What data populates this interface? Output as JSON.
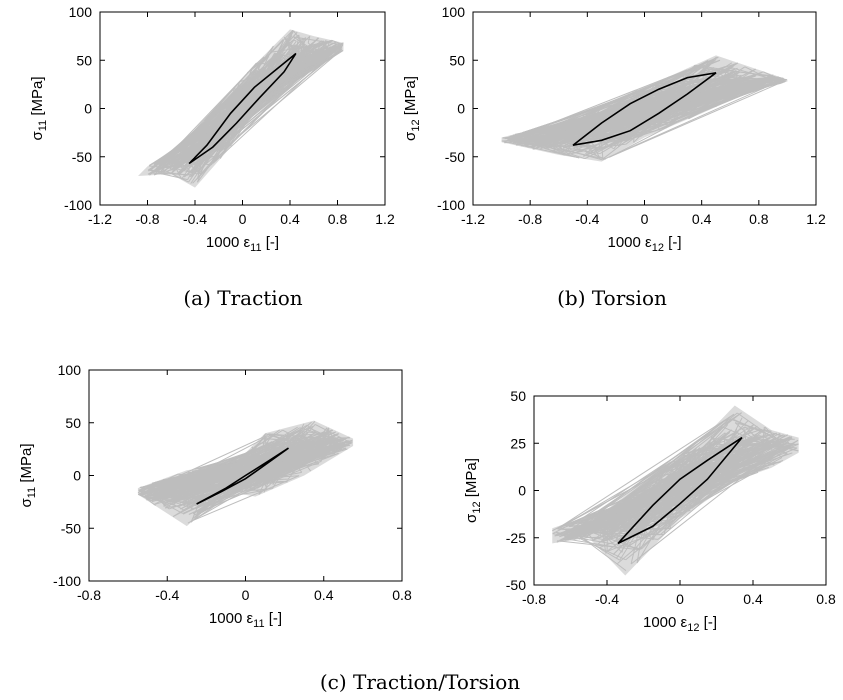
{
  "captions": {
    "a": "(a)  Traction",
    "b": "(b)  Torsion",
    "c": "(c)  Traction/Torsion"
  },
  "colors": {
    "cloud": "#bdbdbd",
    "loop": "#000000",
    "frame": "#000000"
  },
  "chart_data": [
    {
      "id": "a",
      "type": "line",
      "title": "",
      "xlabel": {
        "base": "1000 ε",
        "sub": "11",
        "suffix": " [-]"
      },
      "ylabel": {
        "base": "σ",
        "sub": "11",
        "suffix": " [MPa]"
      },
      "xlim": [
        -1.2,
        1.2
      ],
      "ylim": [
        -100,
        100
      ],
      "xticks": [
        -1.2,
        -0.8,
        -0.4,
        0,
        0.4,
        0.8,
        1.2
      ],
      "yticks": [
        -100,
        -50,
        0,
        50,
        100
      ],
      "xtick_labels": [
        "-1.2",
        "-0.8",
        "-0.4",
        "0",
        "0.4",
        "0.8",
        "1.2"
      ],
      "ytick_labels": [
        "-100",
        "-50",
        "0",
        "50",
        "100"
      ],
      "grid": false,
      "scatter_band": {
        "upper": [
          [
            -0.8,
            -60
          ],
          [
            -0.5,
            -35
          ],
          [
            -0.2,
            5
          ],
          [
            0.1,
            45
          ],
          [
            0.4,
            82
          ],
          [
            0.6,
            75
          ],
          [
            0.85,
            68
          ]
        ],
        "lower": [
          [
            -0.88,
            -70
          ],
          [
            -0.6,
            -68
          ],
          [
            -0.4,
            -82
          ],
          [
            -0.1,
            -40
          ],
          [
            0.2,
            15
          ],
          [
            0.5,
            40
          ],
          [
            0.85,
            60
          ]
        ]
      },
      "loop": {
        "upper": [
          [
            -0.45,
            -57
          ],
          [
            -0.3,
            -38
          ],
          [
            -0.1,
            -5
          ],
          [
            0.1,
            22
          ],
          [
            0.3,
            42
          ],
          [
            0.45,
            57
          ]
        ],
        "lower": [
          [
            -0.45,
            -57
          ],
          [
            -0.25,
            -40
          ],
          [
            -0.05,
            -15
          ],
          [
            0.15,
            12
          ],
          [
            0.35,
            38
          ],
          [
            0.45,
            57
          ]
        ]
      }
    },
    {
      "id": "b",
      "type": "line",
      "title": "",
      "xlabel": {
        "base": "1000 ε",
        "sub": "12",
        "suffix": " [-]"
      },
      "ylabel": {
        "base": "σ",
        "sub": "12",
        "suffix": " [MPa]"
      },
      "xlim": [
        -1.2,
        1.2
      ],
      "ylim": [
        -100,
        100
      ],
      "xticks": [
        -1.2,
        -0.8,
        -0.4,
        0,
        0.4,
        0.8,
        1.2
      ],
      "yticks": [
        -100,
        -50,
        0,
        50,
        100
      ],
      "xtick_labels": [
        "-1.2",
        "-0.8",
        "-0.4",
        "0",
        "0.4",
        "0.8",
        "1.2"
      ],
      "ytick_labels": [
        "-100",
        "-50",
        "0",
        "50",
        "100"
      ],
      "grid": false,
      "scatter_band": {
        "upper": [
          [
            -1.0,
            -30
          ],
          [
            -0.6,
            -15
          ],
          [
            -0.2,
            10
          ],
          [
            0.2,
            35
          ],
          [
            0.5,
            55
          ],
          [
            0.8,
            40
          ],
          [
            1.0,
            30
          ]
        ],
        "lower": [
          [
            -1.0,
            -35
          ],
          [
            -0.6,
            -48
          ],
          [
            -0.3,
            -55
          ],
          [
            0.0,
            -30
          ],
          [
            0.4,
            -5
          ],
          [
            0.7,
            15
          ],
          [
            1.0,
            28
          ]
        ]
      },
      "loop": {
        "upper": [
          [
            -0.5,
            -38
          ],
          [
            -0.3,
            -15
          ],
          [
            -0.1,
            5
          ],
          [
            0.1,
            20
          ],
          [
            0.3,
            32
          ],
          [
            0.5,
            37
          ]
        ],
        "lower": [
          [
            -0.5,
            -38
          ],
          [
            -0.3,
            -33
          ],
          [
            -0.1,
            -23
          ],
          [
            0.1,
            -5
          ],
          [
            0.3,
            15
          ],
          [
            0.5,
            37
          ]
        ]
      }
    },
    {
      "id": "c1",
      "type": "line",
      "title": "",
      "xlabel": {
        "base": "1000 ε",
        "sub": "11",
        "suffix": " [-]"
      },
      "ylabel": {
        "base": "σ",
        "sub": "11",
        "suffix": " [MPa]"
      },
      "xlim": [
        -0.8,
        0.8
      ],
      "ylim": [
        -100,
        100
      ],
      "xticks": [
        -0.8,
        -0.4,
        0,
        0.4,
        0.8
      ],
      "yticks": [
        -100,
        -50,
        0,
        50,
        100
      ],
      "xtick_labels": [
        "-0.8",
        "-0.4",
        "0",
        "0.4",
        "0.8"
      ],
      "ytick_labels": [
        "-100",
        "-50",
        "0",
        "50",
        "100"
      ],
      "grid": false,
      "scatter_band": {
        "upper": [
          [
            -0.55,
            -12
          ],
          [
            -0.3,
            5
          ],
          [
            -0.05,
            12
          ],
          [
            0.1,
            40
          ],
          [
            0.35,
            52
          ],
          [
            0.55,
            35
          ]
        ],
        "lower": [
          [
            -0.55,
            -18
          ],
          [
            -0.3,
            -48
          ],
          [
            -0.1,
            -15
          ],
          [
            0.05,
            -20
          ],
          [
            0.3,
            0
          ],
          [
            0.55,
            28
          ]
        ]
      },
      "loop": {
        "upper": [
          [
            -0.25,
            -27
          ],
          [
            -0.1,
            -12
          ],
          [
            0.0,
            0
          ],
          [
            0.12,
            14
          ],
          [
            0.22,
            26
          ]
        ],
        "lower": [
          [
            -0.25,
            -27
          ],
          [
            -0.12,
            -15
          ],
          [
            0.0,
            -3
          ],
          [
            0.1,
            10
          ],
          [
            0.22,
            26
          ]
        ]
      }
    },
    {
      "id": "c2",
      "type": "line",
      "title": "",
      "xlabel": {
        "base": "1000 ε",
        "sub": "12",
        "suffix": " [-]"
      },
      "ylabel": {
        "base": "σ",
        "sub": "12",
        "suffix": " [MPa]"
      },
      "xlim": [
        -0.8,
        0.8
      ],
      "ylim": [
        -50,
        50
      ],
      "xticks": [
        -0.8,
        -0.4,
        0,
        0.4,
        0.8
      ],
      "yticks": [
        -50,
        -25,
        0,
        25,
        50
      ],
      "xtick_labels": [
        "-0.8",
        "-0.4",
        "0",
        "0.4",
        "0.8"
      ],
      "ytick_labels": [
        "-50",
        "-25",
        "0",
        "25",
        "50"
      ],
      "grid": false,
      "scatter_band": {
        "upper": [
          [
            -0.7,
            -20
          ],
          [
            -0.4,
            -10
          ],
          [
            -0.1,
            12
          ],
          [
            0.1,
            25
          ],
          [
            0.3,
            45
          ],
          [
            0.5,
            32
          ],
          [
            0.65,
            28
          ]
        ],
        "lower": [
          [
            -0.7,
            -28
          ],
          [
            -0.5,
            -25
          ],
          [
            -0.3,
            -45
          ],
          [
            0.0,
            -15
          ],
          [
            0.3,
            5
          ],
          [
            0.5,
            12
          ],
          [
            0.65,
            20
          ]
        ]
      },
      "loop": {
        "upper": [
          [
            -0.34,
            -28
          ],
          [
            -0.15,
            -8
          ],
          [
            0.0,
            6
          ],
          [
            0.15,
            16
          ],
          [
            0.34,
            28
          ]
        ],
        "lower": [
          [
            -0.34,
            -28
          ],
          [
            -0.15,
            -19
          ],
          [
            0.0,
            -7
          ],
          [
            0.15,
            6
          ],
          [
            0.34,
            28
          ]
        ]
      }
    }
  ]
}
